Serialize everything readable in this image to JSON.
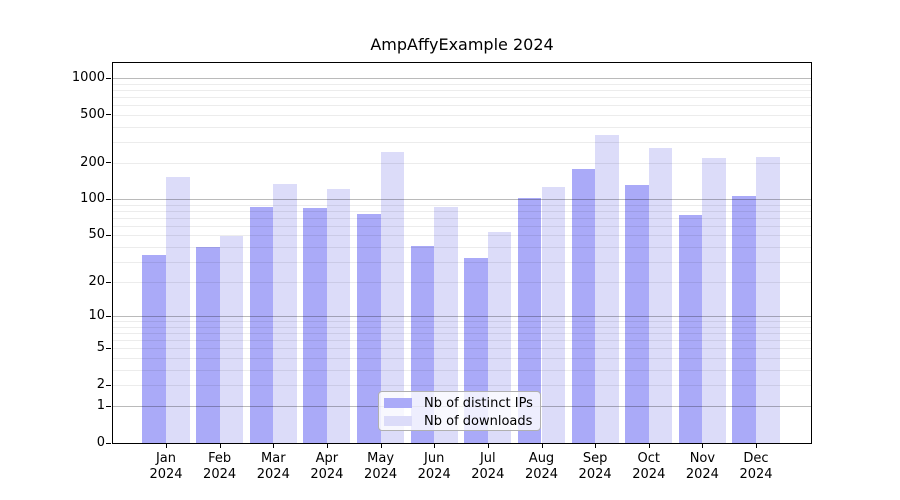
{
  "chart_data": {
    "type": "bar",
    "title": "AmpAffyExample 2024",
    "y_scale": "log(1+x)",
    "ylim": [
      0,
      1380
    ],
    "y_ticks": [
      0,
      1,
      2,
      5,
      10,
      20,
      50,
      100,
      200,
      500,
      1000
    ],
    "x_months": [
      "Jan",
      "Feb",
      "Mar",
      "Apr",
      "May",
      "Jun",
      "Jul",
      "Aug",
      "Sep",
      "Oct",
      "Nov",
      "Dec"
    ],
    "x_year": "2024",
    "series": [
      {
        "name": "Nb of distinct IPs",
        "color": "#aaaaf8",
        "values": [
          34,
          40,
          87,
          85,
          75,
          41,
          32,
          102,
          178,
          132,
          74,
          107
        ]
      },
      {
        "name": "Nb of downloads",
        "color": "#dcdcf9",
        "values": [
          152,
          49,
          134,
          122,
          246,
          87,
          53,
          127,
          338,
          266,
          219,
          222
        ]
      }
    ],
    "grid": "horizontal major+minor",
    "legend_position": "lower center"
  }
}
